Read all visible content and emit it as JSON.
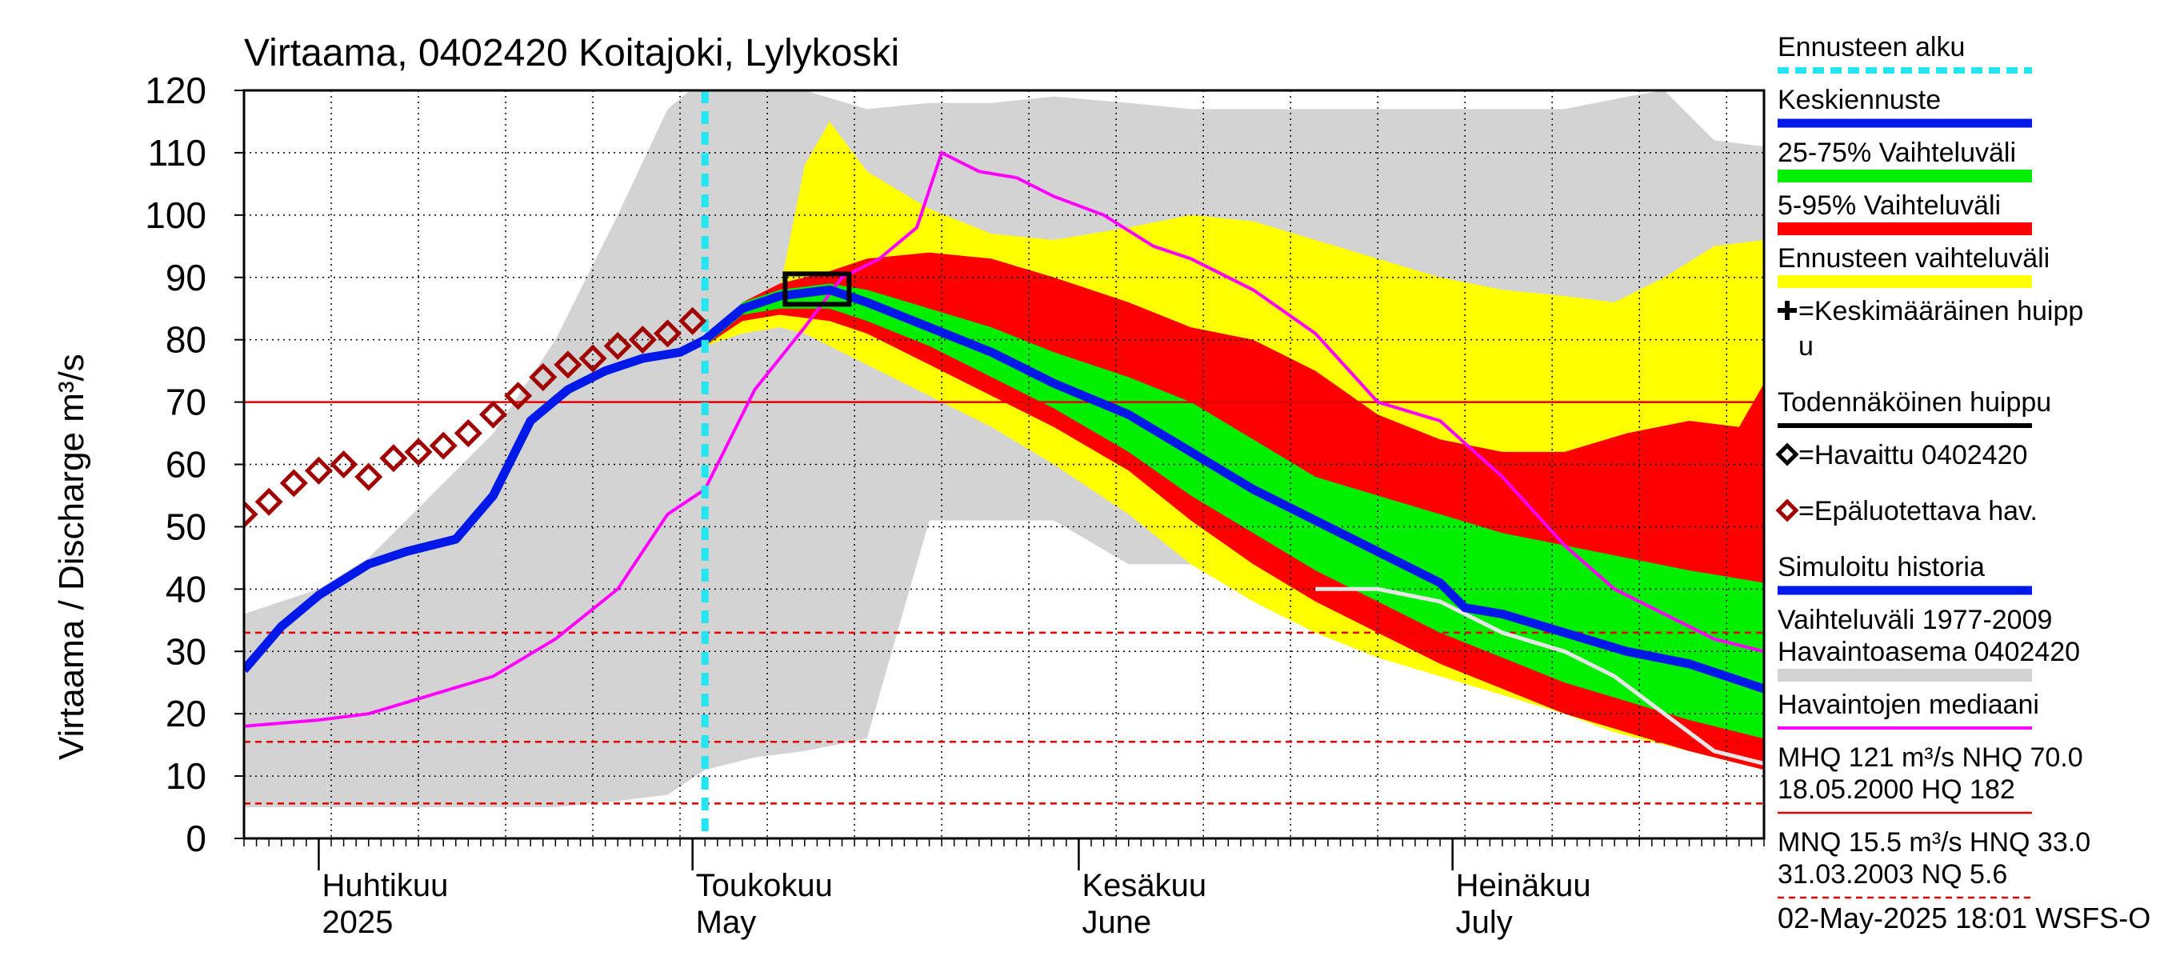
{
  "title": "Virtaama, 0402420 Koitajoki, Lylykoski",
  "ylabel": "Virtaama / Discharge   m³/s",
  "timestamp": "02-May-2025 18:01 WSFS-O",
  "colors": {
    "forecast_start": "#22e5f0",
    "mean_forecast": "#0018e8",
    "band_25_75": "#00ee00",
    "band_5_95": "#ff0000",
    "forecast_range": "#ffff00",
    "history_range": "#d3d3d3",
    "median": "#ff00ff",
    "observed_unreliable": "#a00000",
    "ref_line": "#e00000"
  },
  "legend": [
    {
      "key": "forecast_start",
      "label": "Ennusteen alku",
      "style": "dashed-cyan"
    },
    {
      "key": "mean_forecast",
      "label": "Keskiennuste",
      "style": "blue"
    },
    {
      "key": "band_25_75",
      "label": "25-75% Vaihteluväli",
      "style": "green"
    },
    {
      "key": "band_5_95",
      "label": "5-95% Vaihteluväli",
      "style": "red"
    },
    {
      "key": "forecast_range",
      "label": "Ennusteen vaihteluväli",
      "style": "yellow"
    },
    {
      "key": "mean_peak",
      "label": "=Keskimääräinen huipp\nu",
      "style": "plus"
    },
    {
      "key": "probable_peak",
      "label": "Todennäköinen huippu",
      "style": "black"
    },
    {
      "key": "observed",
      "label": "=Havaittu 0402420",
      "style": "diamond-black"
    },
    {
      "key": "observed_unreliable",
      "label": "=Epäluotettava hav.",
      "style": "diamond-red"
    },
    {
      "key": "simulated",
      "label": "Simuloitu historia",
      "style": "blue"
    },
    {
      "key": "history_range",
      "label": "Vaihteluväli 1977-2009\n Havaintoasema 0402420",
      "style": "gray"
    },
    {
      "key": "median",
      "label": "Havaintojen mediaani",
      "style": "magenta"
    },
    {
      "key": "stats1",
      "label": "MHQ  121 m³/s NHQ 70.0\n18.05.2000 HQ  182",
      "style": "red-solid"
    },
    {
      "key": "stats2",
      "label": "MNQ 15.5 m³/s HNQ 33.0\n31.03.2003 NQ  5.6",
      "style": "red-dashed"
    }
  ],
  "chart_data": {
    "type": "area",
    "x_start": "2025-03-26",
    "x_end": "2025-07-26",
    "ylim": [
      0,
      120
    ],
    "yticks": [
      0,
      10,
      20,
      30,
      40,
      50,
      60,
      70,
      80,
      90,
      100,
      110,
      120
    ],
    "month_labels": [
      {
        "date": "2025-04-01",
        "fi": "Huhtikuu",
        "en": "2025"
      },
      {
        "date": "2025-05-01",
        "fi": "Toukokuu",
        "en": "May"
      },
      {
        "date": "2025-06-01",
        "fi": "Kesäkuu",
        "en": "June"
      },
      {
        "date": "2025-07-01",
        "fi": "Heinäkuu",
        "en": "July"
      }
    ],
    "forecast_start": "2025-05-02",
    "reference_lines": [
      {
        "name": "NHQ",
        "value": 70.0,
        "style": "solid"
      },
      {
        "name": "HNQ",
        "value": 33.0,
        "style": "dashed"
      },
      {
        "name": "MNQ",
        "value": 15.5,
        "style": "dashed"
      },
      {
        "name": "NQ",
        "value": 5.6,
        "style": "dashed"
      }
    ],
    "history_range": {
      "dates": [
        "2025-03-26",
        "2025-04-01",
        "2025-04-05",
        "2025-04-10",
        "2025-04-15",
        "2025-04-20",
        "2025-04-25",
        "2025-04-29",
        "2025-05-02",
        "2025-05-06",
        "2025-05-10",
        "2025-05-15",
        "2025-05-20",
        "2025-05-25",
        "2025-05-30",
        "2025-06-05",
        "2025-06-10",
        "2025-06-15",
        "2025-06-20",
        "2025-06-25",
        "2025-06-30",
        "2025-07-05",
        "2025-07-10",
        "2025-07-15",
        "2025-07-18",
        "2025-07-22",
        "2025-07-26"
      ],
      "low": [
        5,
        5,
        5,
        5,
        5,
        5,
        6,
        7,
        11,
        13,
        14,
        16,
        51,
        51,
        51,
        44,
        44,
        43,
        42,
        41,
        40,
        39,
        37,
        34,
        31,
        29,
        28
      ],
      "high": [
        36,
        40,
        45,
        55,
        65,
        80,
        100,
        117,
        122,
        122,
        120,
        117,
        118,
        118,
        119,
        118,
        117,
        117,
        117,
        117,
        117,
        117,
        117,
        119,
        120,
        112,
        111
      ]
    },
    "forecast_range": {
      "dates": [
        "2025-05-02",
        "2025-05-05",
        "2025-05-08",
        "2025-05-10",
        "2025-05-12",
        "2025-05-15",
        "2025-05-20",
        "2025-05-25",
        "2025-05-30",
        "2025-06-05",
        "2025-06-10",
        "2025-06-15",
        "2025-06-20",
        "2025-06-25",
        "2025-06-30",
        "2025-07-05",
        "2025-07-10",
        "2025-07-14",
        "2025-07-18",
        "2025-07-22",
        "2025-07-26"
      ],
      "low": [
        79,
        81,
        82,
        81,
        79,
        76,
        71,
        66,
        60,
        52,
        44,
        38,
        33,
        29,
        26,
        23,
        20,
        17,
        15,
        13,
        11
      ],
      "high": [
        79,
        85,
        88,
        108,
        115,
        107,
        101,
        97,
        96,
        98,
        100,
        99,
        96,
        93,
        90,
        88,
        87,
        86,
        90,
        95,
        96
      ]
    },
    "band_5_95": {
      "dates": [
        "2025-05-02",
        "2025-05-05",
        "2025-05-08",
        "2025-05-12",
        "2025-05-15",
        "2025-05-20",
        "2025-05-25",
        "2025-05-30",
        "2025-06-05",
        "2025-06-10",
        "2025-06-15",
        "2025-06-20",
        "2025-06-25",
        "2025-06-30",
        "2025-07-05",
        "2025-07-10",
        "2025-07-15",
        "2025-07-20",
        "2025-07-24",
        "2025-07-26"
      ],
      "low": [
        79,
        83,
        84,
        83,
        81,
        76,
        71,
        66,
        59,
        51,
        44,
        38,
        33,
        28,
        24,
        20,
        17,
        14,
        12,
        11
      ],
      "high": [
        79,
        86,
        89,
        91,
        93,
        94,
        93,
        90,
        86,
        82,
        80,
        75,
        68,
        64,
        62,
        62,
        65,
        67,
        66,
        73
      ]
    },
    "band_25_75": {
      "dates": [
        "2025-05-02",
        "2025-05-05",
        "2025-05-08",
        "2025-05-12",
        "2025-05-15",
        "2025-05-20",
        "2025-05-25",
        "2025-05-30",
        "2025-06-05",
        "2025-06-10",
        "2025-06-15",
        "2025-06-20",
        "2025-06-25",
        "2025-06-30",
        "2025-07-05",
        "2025-07-10",
        "2025-07-15",
        "2025-07-20",
        "2025-07-26"
      ],
      "low": [
        79,
        84,
        85,
        85,
        83,
        79,
        74,
        69,
        62,
        55,
        49,
        43,
        38,
        33,
        29,
        25,
        22,
        19,
        16
      ],
      "high": [
        79,
        86,
        88,
        89,
        88,
        85,
        82,
        78,
        74,
        70,
        64,
        58,
        55,
        52,
        49,
        47,
        45,
        43,
        41
      ]
    },
    "series": [
      {
        "name": "Keskiennuste",
        "dates": [
          "2025-03-26",
          "2025-03-29",
          "2025-04-01",
          "2025-04-05",
          "2025-04-08",
          "2025-04-12",
          "2025-04-15",
          "2025-04-18",
          "2025-04-21",
          "2025-04-24",
          "2025-04-27",
          "2025-04-30",
          "2025-05-02",
          "2025-05-05",
          "2025-05-08",
          "2025-05-12",
          "2025-05-15",
          "2025-05-20",
          "2025-05-25",
          "2025-05-30",
          "2025-06-05",
          "2025-06-10",
          "2025-06-15",
          "2025-06-20",
          "2025-06-25",
          "2025-06-30",
          "2025-07-02",
          "2025-07-05",
          "2025-07-10",
          "2025-07-15",
          "2025-07-20",
          "2025-07-26"
        ],
        "values": [
          27,
          34,
          39,
          44,
          46,
          48,
          55,
          67,
          72,
          75,
          77,
          78,
          80,
          85,
          87,
          88,
          86,
          82,
          78,
          73,
          68,
          62,
          56,
          51,
          46,
          41,
          37,
          36,
          33,
          30,
          28,
          24
        ]
      },
      {
        "name": "Havaintojen mediaani",
        "dates": [
          "2025-03-26",
          "2025-04-01",
          "2025-04-05",
          "2025-04-10",
          "2025-04-15",
          "2025-04-20",
          "2025-04-25",
          "2025-04-29",
          "2025-05-02",
          "2025-05-06",
          "2025-05-10",
          "2025-05-13",
          "2025-05-16",
          "2025-05-19",
          "2025-05-21",
          "2025-05-24",
          "2025-05-27",
          "2025-05-30",
          "2025-06-03",
          "2025-06-07",
          "2025-06-10",
          "2025-06-15",
          "2025-06-20",
          "2025-06-25",
          "2025-06-30",
          "2025-07-05",
          "2025-07-10",
          "2025-07-14",
          "2025-07-18",
          "2025-07-22",
          "2025-07-26"
        ],
        "values": [
          18,
          19,
          20,
          23,
          26,
          32,
          40,
          52,
          56,
          72,
          82,
          90,
          93,
          98,
          110,
          107,
          106,
          103,
          100,
          95,
          93,
          88,
          81,
          70,
          67,
          58,
          47,
          40,
          36,
          32,
          30
        ]
      },
      {
        "name": "Vaihteluväli 1977-2009 low tail",
        "dates": [
          "2025-06-20",
          "2025-06-25",
          "2025-06-30",
          "2025-07-05",
          "2025-07-10",
          "2025-07-14",
          "2025-07-18",
          "2025-07-22",
          "2025-07-26"
        ],
        "values": [
          40,
          40,
          38,
          33,
          30,
          26,
          20,
          14,
          12
        ]
      }
    ],
    "observed_unreliable": {
      "dates": [
        "2025-03-26",
        "2025-03-28",
        "2025-03-30",
        "2025-04-01",
        "2025-04-03",
        "2025-04-05",
        "2025-04-07",
        "2025-04-09",
        "2025-04-11",
        "2025-04-13",
        "2025-04-15",
        "2025-04-17",
        "2025-04-19",
        "2025-04-21",
        "2025-04-23",
        "2025-04-25",
        "2025-04-27",
        "2025-04-29",
        "2025-05-01"
      ],
      "values": [
        52,
        54,
        57,
        59,
        60,
        58,
        61,
        62,
        63,
        65,
        68,
        71,
        74,
        76,
        77,
        79,
        80,
        81,
        83
      ]
    },
    "probable_peak": {
      "date": "2025-05-11",
      "value": 88
    }
  }
}
